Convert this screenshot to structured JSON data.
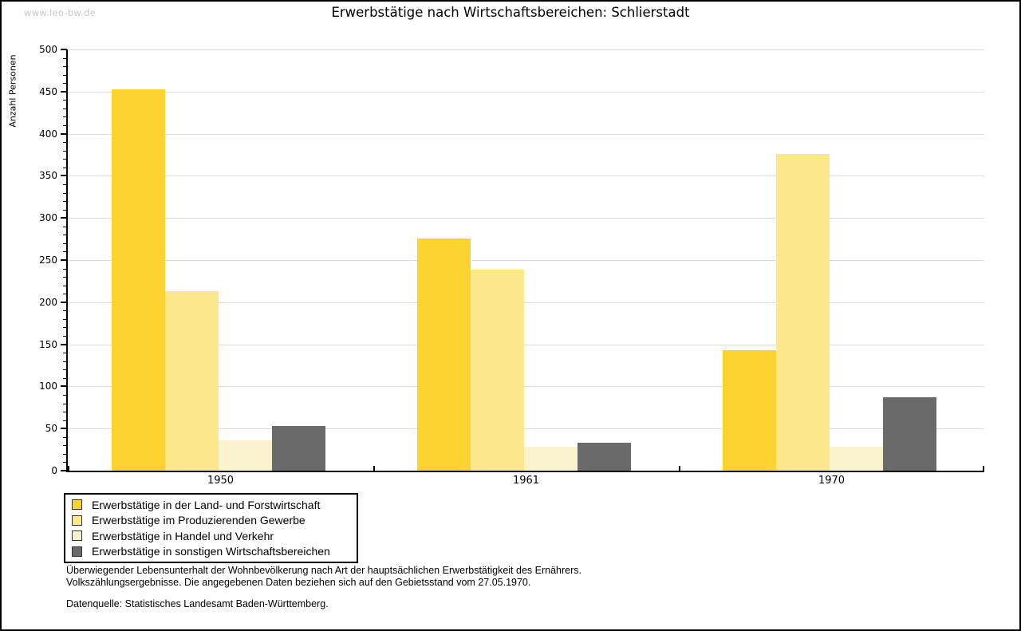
{
  "watermark": "www.leo-bw.de",
  "title": "Erwerbstätige nach Wirtschaftsbereichen: Schlierstadt",
  "chart_data": {
    "type": "bar",
    "title": "Erwerbstätige nach Wirtschaftsbereichen: Schlierstadt",
    "xlabel": "",
    "ylabel": "Anzahl Personen",
    "ylim": [
      0,
      500
    ],
    "ytick_step": 50,
    "yminor_step": 10,
    "grid": true,
    "legend_position": "bottom-left",
    "categories": [
      "1950",
      "1961",
      "1970"
    ],
    "series": [
      {
        "name": "Erwerbstätige in der Land- und Forstwirtschaft",
        "color": "#FCD331",
        "values": [
          453,
          276,
          143
        ]
      },
      {
        "name": "Erwerbstätige im Produzierenden Gewerbe",
        "color": "#FCE78B",
        "values": [
          213,
          239,
          376
        ]
      },
      {
        "name": "Erwerbstätige in Handel und Verkehr",
        "color": "#FBF3CD",
        "values": [
          36,
          28,
          28
        ]
      },
      {
        "name": "Erwerbstätige in sonstigen Wirtschaftsbereichen",
        "color": "#6A6A6A",
        "values": [
          53,
          33,
          87
        ]
      }
    ],
    "colors": {
      "gridline": "#DCDCDC",
      "axis": "#000000",
      "watermark": "#C9C9C9"
    }
  },
  "footer": {
    "line1": "Überwiegender Lebensunterhalt der Wohnbevölkerung nach Art der hauptsächlichen Erwerbstätigkeit des Ernährers.",
    "line2": "Volkszählungsergebnisse. Die angegebenen Daten beziehen sich auf den Gebietsstand vom 27.05.1970.",
    "source": "Datenquelle: Statistisches Landesamt Baden-Württemberg."
  }
}
